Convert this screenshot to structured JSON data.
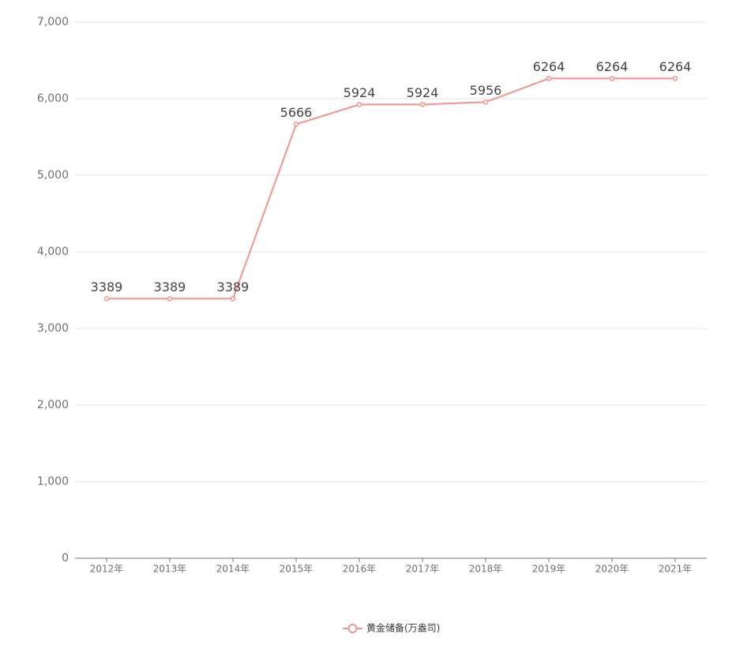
{
  "chart_data": {
    "type": "line",
    "categories": [
      "2012年",
      "2013年",
      "2014年",
      "2015年",
      "2016年",
      "2017年",
      "2018年",
      "2019年",
      "2020年",
      "2021年"
    ],
    "series": [
      {
        "name": "黄金储备(万盎司)",
        "color": "#f3948e",
        "values": [
          3389,
          3389,
          3389,
          5666,
          5924,
          5924,
          5956,
          6264,
          6264,
          6264
        ]
      }
    ],
    "ylim": [
      0,
      7000
    ],
    "yticks": [
      0,
      {
        "value": 1000,
        "label": "1,000"
      },
      {
        "value": 2000,
        "label": "2,000"
      },
      {
        "value": 3000,
        "label": "3,000"
      },
      {
        "value": 4000,
        "label": "4,000"
      },
      {
        "value": 5000,
        "label": "5,000"
      },
      {
        "value": 6000,
        "label": "6,000"
      },
      {
        "value": 7000,
        "label": "7,000"
      }
    ],
    "grid": true,
    "legend": "bottom"
  }
}
